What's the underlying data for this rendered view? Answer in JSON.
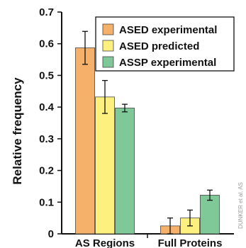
{
  "chart_data": {
    "type": "bar",
    "ylabel": "Relative frequency",
    "ylim": [
      0,
      0.7
    ],
    "yticks": [
      0,
      0.1,
      0.2,
      0.3,
      0.4,
      0.5,
      0.6,
      0.7
    ],
    "ytick_labels": [
      "0",
      "0.1",
      "0.2",
      "0.3",
      "0.4",
      "0.5",
      "0.6",
      "0.7"
    ],
    "categories": [
      "AS Regions",
      "Full Proteins"
    ],
    "series": [
      {
        "name": "ASED experimental",
        "color": "#f5b06a",
        "values": [
          0.587,
          0.025
        ],
        "errors": [
          0.052,
          0.025
        ]
      },
      {
        "name": "ASED predicted",
        "color": "#fdf07e",
        "values": [
          0.432,
          0.05
        ],
        "errors": [
          0.052,
          0.025
        ]
      },
      {
        "name": "ASSP experimental",
        "color": "#7fc999",
        "values": [
          0.397,
          0.122
        ],
        "errors": [
          0.012,
          0.016
        ]
      }
    ],
    "legend_position": "top-right",
    "grid": false
  },
  "side_caption": "DUNKER et al. AS"
}
